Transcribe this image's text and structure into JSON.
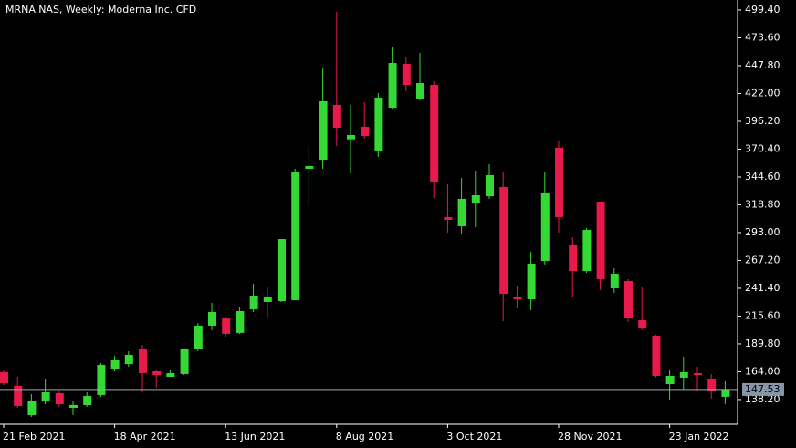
{
  "chart_data": {
    "type": "candlestick",
    "title": "MRNA.NAS, Weekly:  Moderna Inc. CFD",
    "categories": [
      "21 Feb 2021",
      null,
      null,
      null,
      null,
      null,
      null,
      null,
      "18 Apr 2021",
      null,
      null,
      null,
      null,
      null,
      null,
      null,
      "13 Jun 2021",
      null,
      null,
      null,
      null,
      null,
      null,
      null,
      "8 Aug 2021",
      null,
      null,
      null,
      null,
      null,
      null,
      null,
      "3 Oct 2021",
      null,
      null,
      null,
      null,
      null,
      null,
      null,
      "28 Nov 2021",
      null,
      null,
      null,
      null,
      null,
      null,
      null,
      "23 Jan 2022",
      null,
      null,
      null,
      null
    ],
    "open": [
      163.5,
      150.9,
      123.8,
      136.5,
      144.1,
      130.5,
      133.1,
      142.4,
      166.9,
      171.1,
      184.7,
      164.4,
      159.3,
      161.9,
      184.7,
      206.7,
      213.4,
      200.0,
      221.9,
      228.7,
      229.5,
      230.4,
      352.2,
      360.6,
      411.4,
      379.5,
      391.1,
      368.3,
      408.9,
      449.5,
      416.5,
      430.0,
      307.4,
      298.9,
      320.0,
      326.8,
      335.3,
      232.9,
      231.2,
      266.7,
      371.7,
      282.0,
      257.4,
      321.7,
      241.4,
      248.1,
      211.8,
      197.4,
      152.5,
      158.5,
      162.7,
      157.6,
      140.7
    ],
    "high": [
      166.0,
      159.3,
      143.2,
      157.6,
      146.6,
      136.5,
      144.9,
      172.0,
      178.8,
      183.0,
      188.9,
      166.1,
      166.1,
      185.5,
      209.2,
      227.8,
      215.1,
      223.6,
      245.6,
      242.2,
      287.0,
      352.2,
      373.3,
      445.2,
      497.7,
      411.4,
      414.0,
      422.4,
      464.7,
      456.2,
      459.6,
      433.4,
      337.8,
      343.7,
      350.5,
      356.4,
      348.8,
      243.9,
      275.2,
      349.6,
      377.6,
      288.7,
      297.2,
      321.7,
      260.0,
      249.8,
      243.1,
      198.2,
      166.1,
      177.9,
      168.6,
      161.9,
      155.1
    ],
    "low": [
      151.7,
      130.5,
      122.1,
      133.9,
      131.4,
      123.8,
      131.4,
      140.7,
      164.4,
      168.6,
      144.9,
      149.2,
      160.0,
      161.0,
      183.0,
      202.5,
      196.5,
      199.1,
      219.4,
      213.4,
      228.7,
      230.4,
      318.3,
      352.2,
      373.3,
      348.0,
      380.1,
      363.2,
      407.2,
      424.1,
      415.6,
      325.1,
      293.0,
      292.1,
      298.0,
      324.3,
      210.9,
      222.8,
      221.1,
      263.4,
      293.0,
      233.7,
      255.7,
      239.7,
      237.1,
      210.1,
      202.5,
      158.5,
      138.2,
      147.5,
      146.6,
      139.0,
      133.9
    ],
    "close": [
      153.4,
      132.2,
      136.5,
      144.9,
      133.9,
      133.1,
      141.5,
      170.3,
      174.5,
      179.6,
      162.7,
      161.0,
      162.7,
      184.7,
      206.7,
      219.4,
      199.1,
      220.2,
      234.6,
      233.8,
      287.0,
      348.8,
      354.7,
      414.8,
      390.3,
      383.5,
      382.6,
      418.2,
      450.3,
      430.0,
      431.7,
      340.3,
      304.8,
      324.3,
      327.7,
      346.3,
      236.3,
      231.2,
      264.2,
      330.2,
      307.4,
      257.4,
      295.5,
      249.8,
      254.9,
      213.4,
      204.2,
      160.2,
      160.2,
      163.5,
      161.0,
      145.8,
      147.5
    ],
    "up_color": "#35d935",
    "down_color": "#e8194b",
    "last_price": 147.53,
    "ylim": [
      115.3,
      508.7
    ],
    "yticks": [
      {
        "value": 499.4,
        "label": "499.40"
      },
      {
        "value": 473.6,
        "label": "473.60"
      },
      {
        "value": 447.8,
        "label": "447.80"
      },
      {
        "value": 422,
        "label": "422.00"
      },
      {
        "value": 396.2,
        "label": "396.20"
      },
      {
        "value": 370.4,
        "label": "370.40"
      },
      {
        "value": 344.6,
        "label": "344.60"
      },
      {
        "value": 318.8,
        "label": "318.80"
      },
      {
        "value": 293,
        "label": "293.00"
      },
      {
        "value": 267.2,
        "label": "267.20"
      },
      {
        "value": 241.4,
        "label": "241.40"
      },
      {
        "value": 215.6,
        "label": "215.60"
      },
      {
        "value": 189.8,
        "label": "189.80"
      },
      {
        "value": 164,
        "label": "164.00"
      },
      {
        "value": 138.2,
        "label": "138.20"
      }
    ]
  }
}
